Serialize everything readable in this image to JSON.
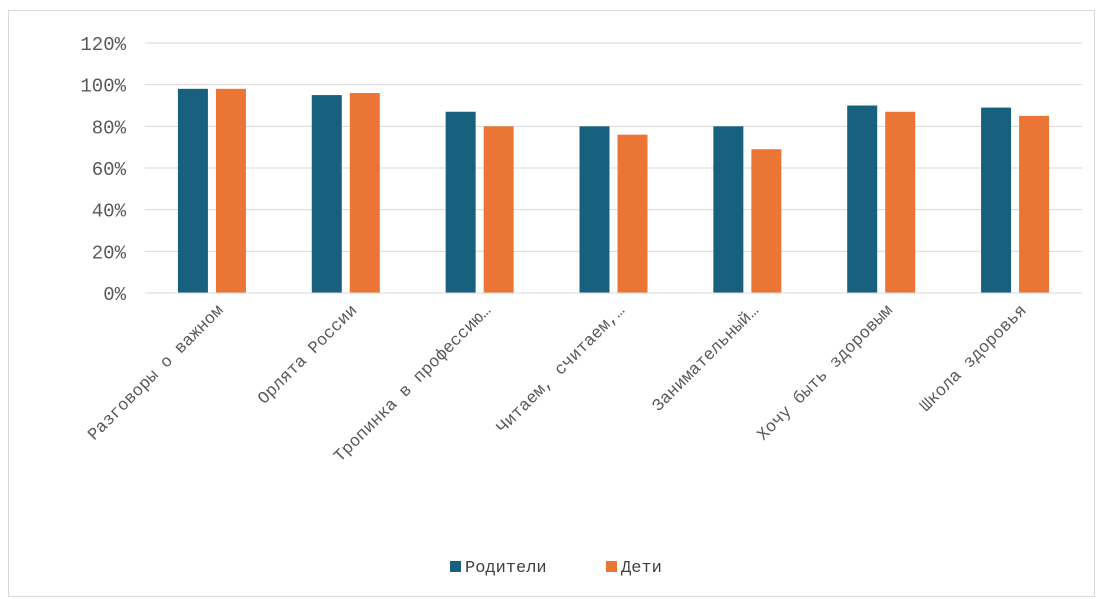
{
  "chart_data": {
    "type": "bar",
    "categories": [
      "Разговоры о важном",
      "Орлята России",
      "Тропинка в профессию…",
      "Читаем, считаем,…",
      "Занимательный…",
      "Хочу быть здоровым",
      "Школа здоровья"
    ],
    "series": [
      {
        "name": "Родители",
        "color": "#17607e",
        "values": [
          98,
          95,
          87,
          80,
          80,
          90,
          89
        ]
      },
      {
        "name": "Дети",
        "color": "#ea7535",
        "values": [
          98,
          96,
          80,
          76,
          69,
          87,
          85
        ]
      }
    ],
    "ylim": [
      0,
      120
    ],
    "yticks": [
      "0%",
      "20%",
      "40%",
      "60%",
      "80%",
      "100%",
      "120%"
    ],
    "grid": true,
    "legend": "bottom"
  }
}
